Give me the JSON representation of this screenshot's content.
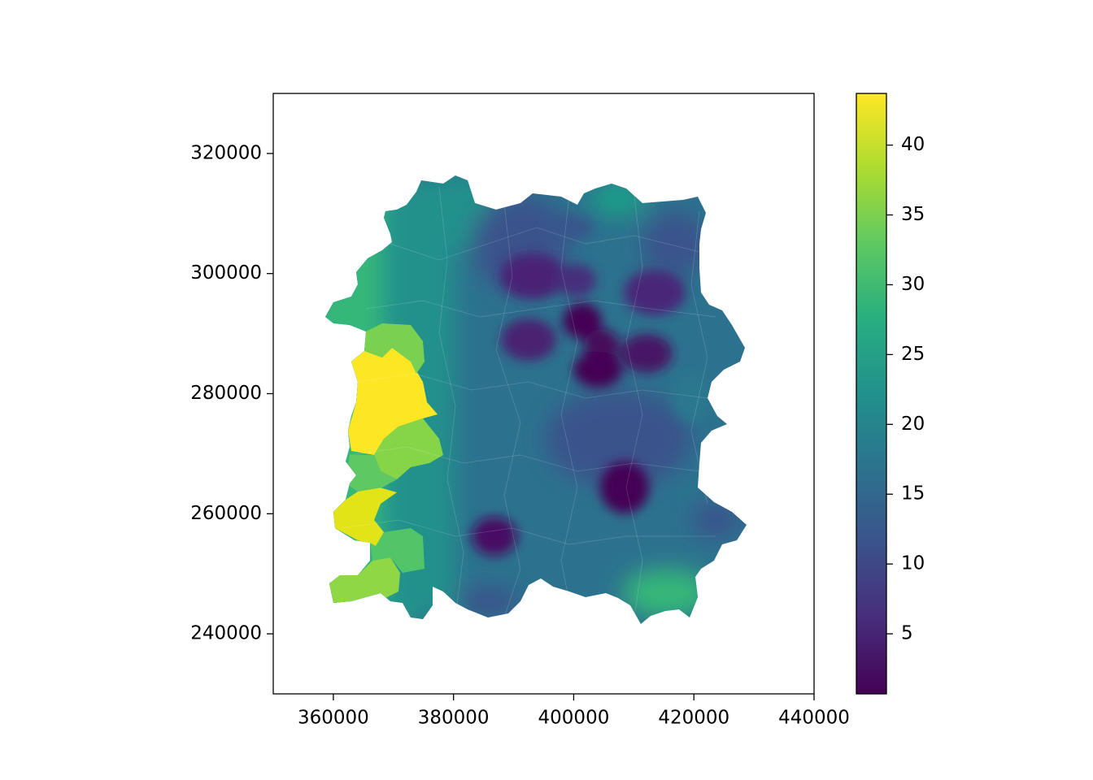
{
  "chart_data": {
    "type": "heatmap",
    "title": "",
    "xlabel": "",
    "ylabel": "",
    "xlim": [
      350000,
      440000
    ],
    "ylim": [
      230000,
      330000
    ],
    "x_ticks": [
      360000,
      380000,
      400000,
      420000,
      440000
    ],
    "x_tick_labels": [
      "360000",
      "380000",
      "400000",
      "420000",
      "440000"
    ],
    "y_ticks": [
      240000,
      260000,
      280000,
      300000,
      320000
    ],
    "y_tick_labels": [
      "240000",
      "260000",
      "280000",
      "300000",
      "320000"
    ],
    "colorbar": {
      "colormap": "viridis",
      "range": [
        0.7,
        43.7
      ],
      "ticks": [
        5,
        10,
        15,
        20,
        25,
        30,
        35,
        40
      ],
      "tick_labels": [
        "5",
        "10",
        "15",
        "20",
        "25",
        "30",
        "35",
        "40"
      ]
    },
    "grid": false,
    "description_regions": [
      {
        "x": 367000,
        "y": 281000,
        "value": 43
      },
      {
        "x": 366000,
        "y": 260000,
        "value": 40
      },
      {
        "x": 372000,
        "y": 270000,
        "value": 35
      },
      {
        "x": 376000,
        "y": 285000,
        "value": 31
      },
      {
        "x": 392000,
        "y": 299500,
        "value": 3
      },
      {
        "x": 400000,
        "y": 298500,
        "value": 6
      },
      {
        "x": 401500,
        "y": 292000,
        "value": 2
      },
      {
        "x": 392500,
        "y": 289000,
        "value": 4
      },
      {
        "x": 404500,
        "y": 288000,
        "value": 4
      },
      {
        "x": 403500,
        "y": 284000,
        "value": 3
      },
      {
        "x": 411000,
        "y": 286500,
        "value": 4
      },
      {
        "x": 410500,
        "y": 297500,
        "value": 5
      },
      {
        "x": 407500,
        "y": 264000,
        "value": 2
      },
      {
        "x": 388000,
        "y": 255000,
        "value": 5
      },
      {
        "x": 414000,
        "y": 248000,
        "value": 27
      }
    ]
  }
}
